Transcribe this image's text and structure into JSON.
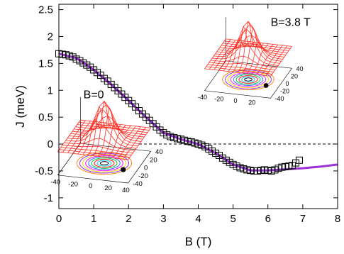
{
  "chart_data": {
    "type": "scatter",
    "xlabel": "B (T)",
    "ylabel": "J (meV)",
    "xlim": [
      0,
      8
    ],
    "ylim": [
      -1.2,
      2.6
    ],
    "x_ticks": [
      0,
      1,
      2,
      3,
      4,
      5,
      6,
      7,
      8
    ],
    "y_ticks": [
      -1,
      -0.5,
      0,
      0.5,
      1,
      1.5,
      2,
      2.5
    ],
    "x_tick_labels": [
      "0",
      "1",
      "2",
      "3",
      "4",
      "5",
      "6",
      "7",
      "8"
    ],
    "y_tick_labels": [
      "-1",
      "-0.5",
      "0",
      "0.5",
      "1",
      "1.5",
      "2",
      "2.5"
    ],
    "grid": false,
    "zero_reference_line": {
      "y": 0,
      "style": "dashed",
      "x_from": 2.3,
      "x_to": 8
    },
    "series": [
      {
        "kind": "open-square-markers",
        "color": "#000000",
        "x": [
          0.0,
          0.1,
          0.2,
          0.3,
          0.4,
          0.5,
          0.6,
          0.7,
          0.8,
          0.9,
          1.0,
          1.1,
          1.2,
          1.3,
          1.4,
          1.5,
          1.6,
          1.7,
          1.8,
          1.9,
          2.0,
          2.1,
          2.2,
          2.3,
          2.4,
          2.5,
          2.6,
          2.7,
          2.8,
          2.9,
          3.0,
          3.1,
          3.2,
          3.3,
          3.4,
          3.5,
          3.6,
          3.7,
          3.8,
          3.9,
          4.0,
          4.1,
          4.2,
          4.3,
          4.4,
          4.5,
          4.6,
          4.7,
          4.8,
          4.9,
          5.0,
          5.1,
          5.2,
          5.3,
          5.4,
          5.5,
          5.6,
          5.7,
          5.8,
          5.9,
          6.0,
          6.1,
          6.2,
          6.3,
          6.4,
          6.5,
          6.6,
          6.7,
          6.8,
          6.9
        ],
        "y": [
          1.68,
          1.67,
          1.66,
          1.64,
          1.62,
          1.58,
          1.55,
          1.51,
          1.47,
          1.43,
          1.38,
          1.33,
          1.28,
          1.22,
          1.17,
          1.11,
          1.05,
          0.99,
          0.93,
          0.87,
          0.81,
          0.75,
          0.69,
          0.62,
          0.56,
          0.5,
          0.44,
          0.38,
          0.32,
          0.26,
          0.21,
          0.17,
          0.14,
          0.12,
          0.1,
          0.09,
          0.07,
          0.05,
          0.04,
          0.02,
          0.0,
          -0.02,
          -0.05,
          -0.09,
          -0.13,
          -0.17,
          -0.21,
          -0.26,
          -0.3,
          -0.34,
          -0.38,
          -0.41,
          -0.44,
          -0.46,
          -0.48,
          -0.49,
          -0.5,
          -0.5,
          -0.49,
          -0.48,
          -0.49,
          -0.5,
          -0.48,
          -0.45,
          -0.43,
          -0.42,
          -0.41,
          -0.4,
          -0.35,
          -0.3
        ]
      },
      {
        "kind": "line",
        "color": "#9b30d9",
        "x": [
          0.0,
          0.5,
          1.0,
          1.5,
          2.0,
          2.5,
          3.0,
          3.5,
          4.0,
          4.5,
          5.0,
          5.5,
          6.0,
          6.5,
          7.0,
          7.5,
          8.0
        ],
        "y": [
          1.68,
          1.6,
          1.38,
          1.11,
          0.81,
          0.5,
          0.21,
          0.09,
          0.0,
          -0.17,
          -0.38,
          -0.49,
          -0.49,
          -0.47,
          -0.45,
          -0.42,
          -0.38
        ]
      }
    ],
    "annotations": [
      {
        "text": "B=3.8 T",
        "at": [
          6.65,
          2.2
        ]
      },
      {
        "text": "B=0",
        "at": [
          1.0,
          0.85
        ]
      }
    ],
    "insets": [
      {
        "name": "inset-b-3-8",
        "ref": "B=3.8 T",
        "x_tick_labels": [
          "-40",
          "-20",
          "0",
          "20"
        ],
        "y_tick_labels": [
          "40",
          "20",
          "0",
          "-20",
          "-40"
        ],
        "surface_color": "#ff2a1f",
        "contour_colors": [
          "#ff8000",
          "#8a2be2",
          "#ffd400",
          "#ff00ff",
          "#2b6bff",
          "#00c040",
          "#ff0000",
          "#00cfff",
          "#000000"
        ]
      },
      {
        "name": "inset-b-0",
        "ref": "B=0",
        "x_tick_labels": [
          "-40",
          "-20",
          "0",
          "20",
          "40"
        ],
        "y_tick_labels": [
          "40",
          "20",
          "0",
          "-20",
          "-40"
        ],
        "surface_color": "#ff2a1f",
        "contour_colors": [
          "#ff8000",
          "#8a2be2",
          "#ffd400",
          "#ff00ff",
          "#2b6bff",
          "#00c040",
          "#ff0000",
          "#00cfff",
          "#000000"
        ]
      }
    ]
  }
}
